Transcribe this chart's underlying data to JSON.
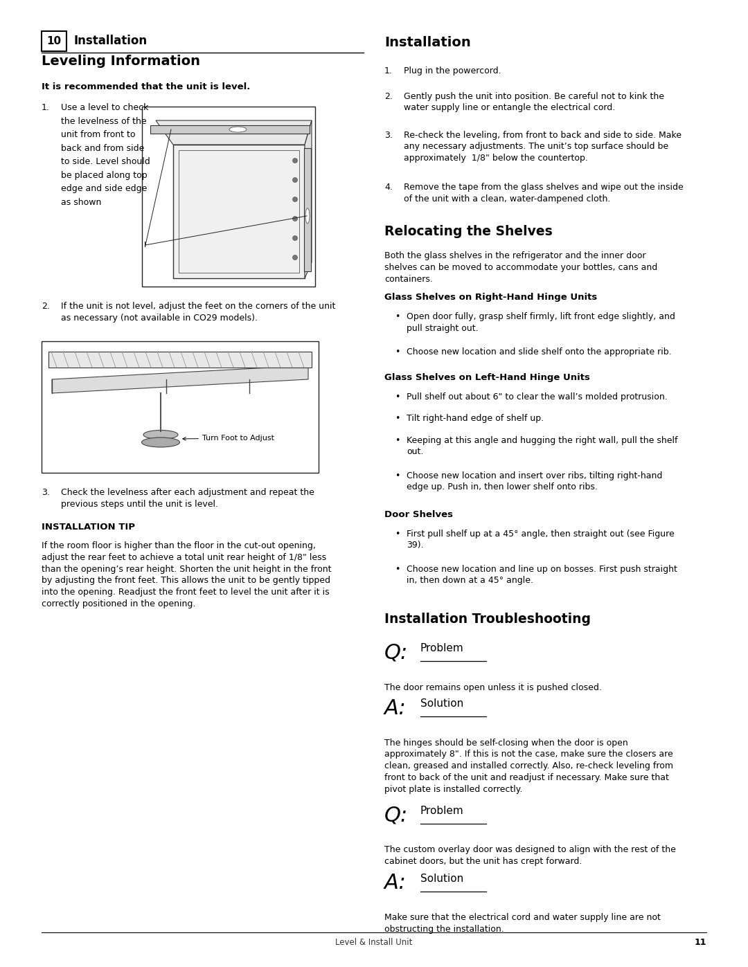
{
  "bg_color": "#ffffff",
  "page_width": 10.8,
  "page_height": 13.97,
  "footer_text": "Level & Install Unit",
  "page_number": "11",
  "header_box_label": "10",
  "header_title": "Installation",
  "section1_title": "Leveling Information",
  "section1_bold": "It is recommended that the unit is level.",
  "right_section_title": "Installation",
  "right_steps": [
    "Plug in the powercord.",
    "Gently push the unit into position. Be careful not to kink the\nwater supply line or entangle the electrical cord.",
    "Re-check the leveling, from front to back and side to side. Make\nany necessary adjustments. The unit’s top surface should be\napproximately  1/8\" below the countertop.",
    "Remove the tape from the glass shelves and wipe out the inside\nof the unit with a clean, water-dampened cloth."
  ],
  "relocate_title": "Relocating the Shelves",
  "relocate_intro": "Both the glass shelves in the refrigerator and the inner door\nshelves can be moved to accommodate your bottles, cans and\ncontainers.",
  "glass_right_title": "Glass Shelves on Right-Hand Hinge Units",
  "glass_right_bullets": [
    "Open door fully, grasp shelf firmly, lift front edge slightly, and\npull straight out.",
    "Choose new location and slide shelf onto the appropriate rib."
  ],
  "glass_left_title": "Glass Shelves on Left-Hand Hinge Units",
  "glass_left_bullets": [
    "Pull shelf out about 6\" to clear the wall’s molded protrusion.",
    "Tilt right-hand edge of shelf up.",
    "Keeping at this angle and hugging the right wall, pull the shelf\nout.",
    "Choose new location and insert over ribs, tilting right-hand\nedge up. Push in, then lower shelf onto ribs."
  ],
  "door_shelves_title": "Door Shelves",
  "door_shelves_bullets": [
    "First pull shelf up at a 45° angle, then straight out (see Figure\n39).",
    "Choose new location and line up on bosses. First push straight\nin, then down at a 45° angle."
  ],
  "troubleshoot_title": "Installation Troubleshooting",
  "q1_underline": "Problem",
  "q1_text": "The door remains open unless it is pushed closed.",
  "a1_underline": "Solution",
  "a1_text": "The hinges should be self-closing when the door is open\napproximately 8\". If this is not the case, make sure the closers are\nclean, greased and installed correctly. Also, re-check leveling from\nfront to back of the unit and readjust if necessary. Make sure that\npivot plate is installed correctly.",
  "q2_underline": "Problem",
  "q2_text": "The custom overlay door was designed to align with the rest of the\ncabinet doors, but the unit has crept forward.",
  "a2_underline": "Solution",
  "a2_text": "Make sure that the electrical cord and water supply line are not\nobstructing the installation.",
  "install_tip_title": "INSTALLATION TIP",
  "install_tip_text": "If the room floor is higher than the floor in the cut-out opening,\nadjust the rear feet to achieve a total unit rear height of 1/8\" less\nthan the opening’s rear height. Shorten the unit height in the front\nby adjusting the front feet. This allows the unit to be gently tipped\ninto the opening. Readjust the front feet to level the unit after it is\ncorrectly positioned in the opening."
}
